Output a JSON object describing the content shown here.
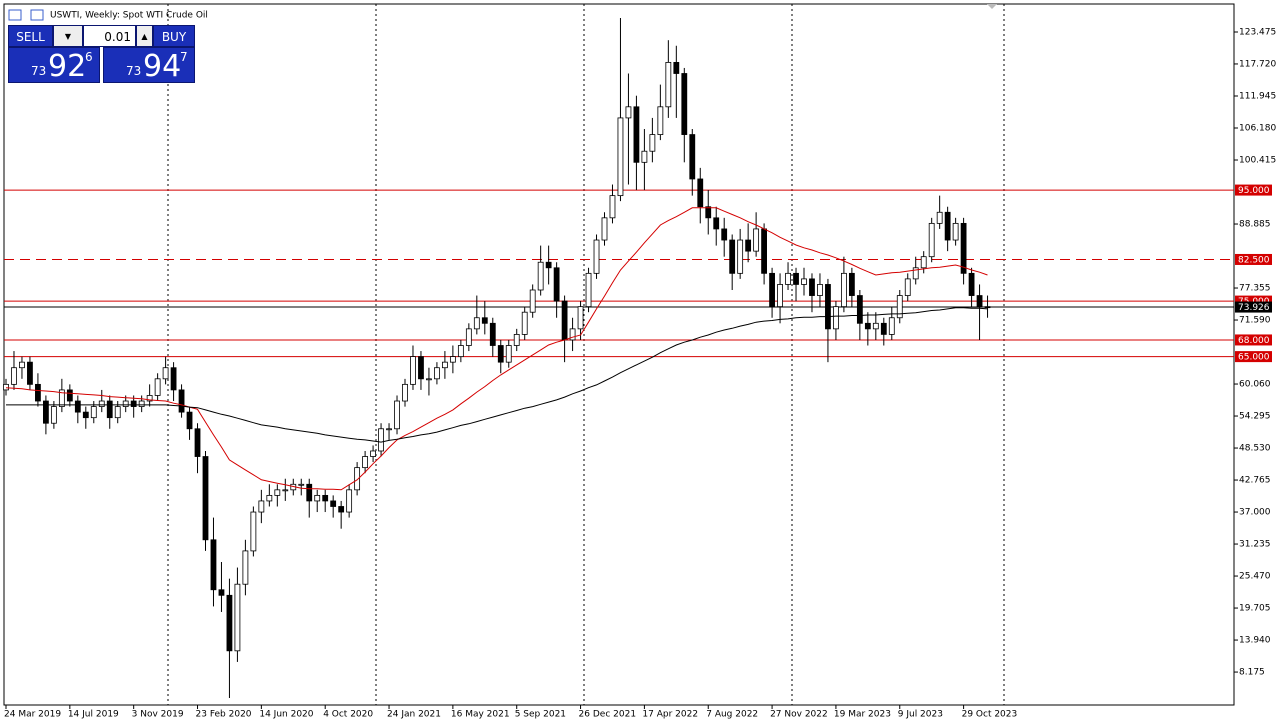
{
  "chart_data": {
    "type": "candlestick",
    "title": "USWTI, Weekly:  Spot WTI Crude Oil",
    "ylim": [
      2.24,
      128.52
    ],
    "yticks": [
      123.475,
      {
        "value": 117.72,
        "label": "117.720"
      },
      111.945,
      {
        "value": 106.18,
        "label": "106.180"
      },
      100.415,
      88.885,
      77.355,
      {
        "value": 71.59,
        "label": "71.590"
      },
      {
        "value": 60.06,
        "label": "60.060"
      },
      54.295,
      {
        "value": 48.53,
        "label": "48.530"
      },
      42.765,
      {
        "value": 37.0,
        "label": "37.000"
      },
      31.235,
      {
        "value": 25.47,
        "label": "25.470"
      },
      19.705,
      {
        "value": 13.94,
        "label": "13.940"
      },
      8.175
    ],
    "grid": true,
    "up_color": "#ffffff",
    "down_color": "#000000",
    "levels": [
      {
        "value": 95,
        "label": "95.000",
        "color": "#d40000",
        "dashed": false
      },
      {
        "value": 82.5,
        "label": "82.500",
        "color": "#d40000",
        "dashed": true
      },
      {
        "value": 75,
        "label": "75.000",
        "color": "#d40000",
        "dashed": false
      },
      {
        "value": 73.926,
        "label": "73.926",
        "color": "#000000",
        "dashed": false
      },
      {
        "value": 68,
        "label": "68.000",
        "color": "#d40000",
        "dashed": false
      },
      {
        "value": 65,
        "label": "65.000",
        "color": "#d40000",
        "dashed": false
      }
    ],
    "categories": [
      "24 Mar 2019",
      null,
      null,
      null,
      null,
      null,
      null,
      null,
      "14 Jul 2019",
      null,
      null,
      null,
      null,
      null,
      null,
      null,
      "3 Nov 2019",
      null,
      null,
      null,
      null,
      null,
      null,
      null,
      "23 Feb 2020",
      null,
      null,
      null,
      null,
      null,
      null,
      null,
      "14 Jun 2020",
      null,
      null,
      null,
      null,
      null,
      null,
      null,
      "4 Oct 2020",
      null,
      null,
      null,
      null,
      null,
      null,
      null,
      "24 Jan 2021",
      null,
      null,
      null,
      null,
      null,
      null,
      null,
      "16 May 2021",
      null,
      null,
      null,
      null,
      null,
      null,
      null,
      "5 Sep 2021",
      null,
      null,
      null,
      null,
      null,
      null,
      null,
      "26 Dec 2021",
      null,
      null,
      null,
      null,
      null,
      null,
      null,
      "17 Apr 2022",
      null,
      null,
      null,
      null,
      null,
      null,
      null,
      "7 Aug 2022",
      null,
      null,
      null,
      null,
      null,
      null,
      null,
      "27 Nov 2022",
      null,
      null,
      null,
      null,
      null,
      null,
      null,
      "19 Mar 2023",
      null,
      null,
      null,
      null,
      null,
      null,
      null,
      "9 Jul 2023",
      null,
      null,
      null,
      null,
      null,
      null,
      null,
      "29 Oct 2023",
      null,
      null,
      null
    ],
    "ohlc": [
      [
        59,
        61,
        58,
        60
      ],
      [
        60,
        66,
        59,
        63
      ],
      [
        63,
        65,
        61,
        64
      ],
      [
        64,
        65,
        59,
        60
      ],
      [
        60,
        62,
        56,
        57
      ],
      [
        57,
        58,
        51,
        53
      ],
      [
        53,
        57,
        52,
        56
      ],
      [
        56,
        61,
        55,
        59
      ],
      [
        59,
        60,
        56,
        57
      ],
      [
        57,
        58,
        53,
        55
      ],
      [
        55,
        56,
        52,
        54
      ],
      [
        54,
        57,
        53,
        56
      ],
      [
        56,
        59,
        55,
        57
      ],
      [
        57,
        58,
        52,
        54
      ],
      [
        54,
        57,
        53,
        56
      ],
      [
        56,
        58,
        55,
        57
      ],
      [
        57,
        58,
        54,
        56
      ],
      [
        56,
        58,
        55,
        57
      ],
      [
        57,
        60,
        56,
        58
      ],
      [
        58,
        62,
        57,
        61
      ],
      [
        61,
        65,
        60,
        63
      ],
      [
        63,
        64,
        57,
        59
      ],
      [
        59,
        60,
        54,
        55
      ],
      [
        55,
        56,
        50,
        52
      ],
      [
        52,
        53,
        44,
        47
      ],
      [
        47,
        48,
        30,
        32
      ],
      [
        32,
        36,
        20,
        23
      ],
      [
        23,
        28,
        19,
        22
      ],
      [
        22,
        25,
        3.5,
        12
      ],
      [
        12,
        27,
        10,
        24
      ],
      [
        24,
        32,
        22,
        30
      ],
      [
        30,
        38,
        29,
        37
      ],
      [
        37,
        41,
        35,
        39
      ],
      [
        39,
        42,
        38,
        40
      ],
      [
        40,
        42,
        38,
        41
      ],
      [
        41,
        43,
        39,
        41
      ],
      [
        41,
        43,
        40,
        42
      ],
      [
        42,
        43,
        40,
        42
      ],
      [
        42,
        43,
        36,
        39
      ],
      [
        39,
        41,
        37,
        40
      ],
      [
        40,
        41,
        37,
        39
      ],
      [
        39,
        40,
        36,
        38
      ],
      [
        38,
        39,
        34,
        37
      ],
      [
        37,
        42,
        36,
        41
      ],
      [
        41,
        46,
        40,
        45
      ],
      [
        45,
        48,
        44,
        47
      ],
      [
        47,
        49,
        46,
        48
      ],
      [
        48,
        53,
        47,
        52
      ],
      [
        52,
        53,
        50,
        52
      ],
      [
        52,
        58,
        51,
        57
      ],
      [
        57,
        61,
        56,
        60
      ],
      [
        60,
        67,
        59,
        65
      ],
      [
        65,
        66,
        59,
        61
      ],
      [
        61,
        63,
        58,
        61
      ],
      [
        61,
        64,
        60,
        63
      ],
      [
        63,
        66,
        61,
        64
      ],
      [
        64,
        67,
        62,
        65
      ],
      [
        65,
        68,
        64,
        67
      ],
      [
        67,
        71,
        66,
        70
      ],
      [
        70,
        76,
        69,
        72
      ],
      [
        72,
        75,
        69,
        71
      ],
      [
        71,
        72,
        65,
        67
      ],
      [
        67,
        68,
        62,
        64
      ],
      [
        64,
        68,
        63,
        67
      ],
      [
        67,
        70,
        66,
        69
      ],
      [
        69,
        74,
        68,
        73
      ],
      [
        73,
        78,
        72,
        77
      ],
      [
        77,
        85,
        76,
        82
      ],
      [
        82,
        85,
        78,
        81
      ],
      [
        81,
        82,
        72,
        75
      ],
      [
        75,
        76,
        64,
        68
      ],
      [
        68,
        72,
        66,
        70
      ],
      [
        70,
        75,
        68,
        74
      ],
      [
        74,
        81,
        73,
        80
      ],
      [
        80,
        87,
        79,
        86
      ],
      [
        86,
        91,
        85,
        90
      ],
      [
        90,
        96,
        89,
        94
      ],
      [
        94,
        126,
        93,
        108
      ],
      [
        108,
        116,
        96,
        110
      ],
      [
        110,
        112,
        95,
        100
      ],
      [
        100,
        106,
        95,
        102
      ],
      [
        102,
        108,
        100,
        105
      ],
      [
        105,
        114,
        104,
        110
      ],
      [
        110,
        122,
        108,
        118
      ],
      [
        118,
        121,
        108,
        116
      ],
      [
        116,
        117,
        100,
        105
      ],
      [
        105,
        106,
        94,
        97
      ],
      [
        97,
        99,
        89,
        92
      ],
      [
        92,
        95,
        87,
        90
      ],
      [
        90,
        92,
        85,
        88
      ],
      [
        88,
        90,
        83,
        86
      ],
      [
        86,
        87,
        77,
        80
      ],
      [
        80,
        88,
        79,
        86
      ],
      [
        86,
        89,
        82,
        84
      ],
      [
        84,
        91,
        83,
        88
      ],
      [
        88,
        89,
        78,
        80
      ],
      [
        80,
        81,
        72,
        74
      ],
      [
        74,
        80,
        71,
        78
      ],
      [
        78,
        82,
        77,
        80
      ],
      [
        80,
        81,
        75,
        78
      ],
      [
        78,
        81,
        76,
        79
      ],
      [
        79,
        80,
        73,
        76
      ],
      [
        76,
        80,
        74,
        78
      ],
      [
        78,
        79,
        64,
        70
      ],
      [
        70,
        75,
        68,
        74
      ],
      [
        74,
        83,
        73,
        80
      ],
      [
        80,
        81,
        74,
        76
      ],
      [
        76,
        77,
        68,
        71
      ],
      [
        71,
        73,
        67,
        70
      ],
      [
        70,
        73,
        68,
        71
      ],
      [
        71,
        72,
        67,
        69
      ],
      [
        69,
        74,
        68,
        72
      ],
      [
        72,
        77,
        71,
        76
      ],
      [
        76,
        80,
        75,
        79
      ],
      [
        79,
        83,
        78,
        81
      ],
      [
        81,
        84,
        80,
        83
      ],
      [
        83,
        90,
        82,
        89
      ],
      [
        89,
        94,
        88,
        91
      ],
      [
        91,
        92,
        84,
        86
      ],
      [
        86,
        90,
        85,
        89
      ],
      [
        89,
        90,
        78,
        80
      ],
      [
        80,
        81,
        74,
        76
      ],
      [
        76,
        78,
        68,
        74
      ],
      [
        74,
        76,
        72,
        73.93
      ]
    ],
    "series": [
      {
        "color": "#d40000",
        "values": [
          59.4,
          59.3,
          59.2,
          59.0,
          58.9,
          58.8,
          58.7,
          58.5,
          58.4,
          58.3,
          58.2,
          58.1,
          58.0,
          57.8,
          57.7,
          57.6,
          57.5,
          57.4,
          57.2,
          57.1,
          57.0,
          56.6,
          56.3,
          55.9,
          55.5,
          53.2,
          50.9,
          48.7,
          46.4,
          45.5,
          44.6,
          43.7,
          42.8,
          42.5,
          42.2,
          41.9,
          41.6,
          41.3,
          41.2,
          41.2,
          41.1,
          41.1,
          41.0,
          41.9,
          42.8,
          44.2,
          45.7,
          47.1,
          48.6,
          50.0,
          50.8,
          51.5,
          52.3,
          53.1,
          53.9,
          54.6,
          55.4,
          56.5,
          57.5,
          58.6,
          59.6,
          60.7,
          61.7,
          62.6,
          63.5,
          64.4,
          65.3,
          66.2,
          67.1,
          67.6,
          68.0,
          68.5,
          68.9,
          71.2,
          73.6,
          75.9,
          78.3,
          80.6,
          82.2,
          83.8,
          85.5,
          87.1,
          88.7,
          89.5,
          90.2,
          91.0,
          91.8,
          91.8,
          91.8,
          91.8,
          91.2,
          90.6,
          90.0,
          89.3,
          88.7,
          88.0,
          87.3,
          86.5,
          85.8,
          85.1,
          84.6,
          84.2,
          83.7,
          83.3,
          82.8,
          82.2,
          81.6,
          80.9,
          80.3,
          79.7,
          79.9,
          80.1,
          80.2,
          80.4,
          80.6,
          80.8,
          81.0,
          81.1,
          81.3,
          81.5,
          81.1,
          80.6,
          80.2,
          79.7
        ]
      },
      {
        "color": "#000000",
        "values": [
          56.3,
          56.3,
          56.3,
          56.3,
          56.3,
          56.3,
          56.3,
          56.3,
          56.3,
          56.3,
          56.3,
          56.3,
          56.3,
          56.3,
          56.3,
          56.3,
          56.3,
          56.3,
          56.3,
          56.3,
          56.3,
          56.2,
          56.1,
          55.9,
          55.8,
          55.4,
          55.0,
          54.6,
          54.3,
          53.9,
          53.5,
          53.1,
          52.7,
          52.5,
          52.3,
          52.0,
          51.8,
          51.6,
          51.4,
          51.2,
          50.9,
          50.7,
          50.5,
          50.3,
          50.1,
          50.0,
          49.8,
          49.6,
          49.9,
          50.1,
          50.4,
          50.6,
          50.9,
          51.1,
          51.4,
          51.8,
          52.2,
          52.6,
          52.9,
          53.3,
          53.7,
          54.1,
          54.5,
          54.9,
          55.3,
          55.7,
          56.0,
          56.4,
          56.8,
          57.2,
          57.7,
          58.3,
          58.8,
          59.4,
          59.9,
          60.6,
          61.3,
          62.1,
          62.8,
          63.5,
          64.2,
          64.9,
          65.7,
          66.4,
          67.1,
          67.6,
          68.0,
          68.5,
          68.9,
          69.4,
          69.8,
          70.1,
          70.5,
          70.8,
          71.2,
          71.4,
          71.5,
          71.7,
          71.8,
          72.0,
          72.1,
          72.1,
          72.2,
          72.2,
          72.3,
          72.3,
          72.4,
          72.4,
          72.5,
          72.5,
          72.6,
          72.7,
          72.7,
          72.8,
          72.9,
          73.1,
          73.3,
          73.4,
          73.6,
          73.8,
          73.8,
          73.7,
          73.7,
          73.6
        ]
      }
    ]
  },
  "panel": {
    "sell": "SELL",
    "lot": "0.01",
    "buy": "BUY",
    "bid": {
      "pre": "73",
      "big": "92",
      "pip": "6"
    },
    "ask": {
      "pre": "73",
      "big": "94",
      "pip": "7"
    }
  }
}
